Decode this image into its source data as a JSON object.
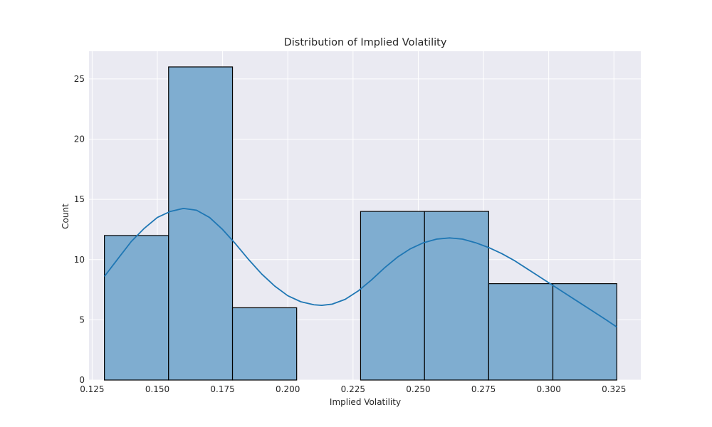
{
  "chart_data": {
    "type": "histogram",
    "title": "Distribution of Implied Volatility",
    "xlabel": "Implied Volatility",
    "ylabel": "Count",
    "xlim": [
      0.1238,
      0.3353
    ],
    "ylim": [
      0,
      27.3
    ],
    "grid": true,
    "bins": [
      {
        "x0": 0.1297,
        "x1": 0.1543,
        "count": 12
      },
      {
        "x0": 0.1543,
        "x1": 0.1788,
        "count": 26
      },
      {
        "x0": 0.1788,
        "x1": 0.2034,
        "count": 6
      },
      {
        "x0": 0.2034,
        "x1": 0.2279,
        "count": 0
      },
      {
        "x0": 0.2279,
        "x1": 0.2524,
        "count": 14
      },
      {
        "x0": 0.2524,
        "x1": 0.277,
        "count": 14
      },
      {
        "x0": 0.277,
        "x1": 0.3016,
        "count": 8
      },
      {
        "x0": 0.3016,
        "x1": 0.3261,
        "count": 8
      }
    ],
    "x_ticks": [
      0.125,
      0.15,
      0.175,
      0.2,
      0.225,
      0.25,
      0.275,
      0.3,
      0.325
    ],
    "x_tick_labels": [
      "0.125",
      "0.150",
      "0.175",
      "0.200",
      "0.225",
      "0.250",
      "0.275",
      "0.300",
      "0.325"
    ],
    "y_ticks": [
      0,
      5,
      10,
      15,
      20,
      25
    ],
    "y_tick_labels": [
      "0",
      "5",
      "10",
      "15",
      "20",
      "25"
    ],
    "kde": {
      "x": [
        0.1297,
        0.135,
        0.14,
        0.145,
        0.15,
        0.155,
        0.16,
        0.165,
        0.17,
        0.175,
        0.18,
        0.185,
        0.19,
        0.195,
        0.2,
        0.205,
        0.21,
        0.213,
        0.217,
        0.222,
        0.227,
        0.232,
        0.237,
        0.242,
        0.247,
        0.252,
        0.257,
        0.262,
        0.267,
        0.272,
        0.277,
        0.282,
        0.287,
        0.292,
        0.297,
        0.302,
        0.307,
        0.312,
        0.317,
        0.322,
        0.3261
      ],
      "y": [
        8.6,
        10.1,
        11.5,
        12.6,
        13.5,
        14.0,
        14.25,
        14.1,
        13.5,
        12.5,
        11.3,
        10.0,
        8.8,
        7.8,
        7.0,
        6.5,
        6.25,
        6.2,
        6.3,
        6.7,
        7.4,
        8.3,
        9.3,
        10.2,
        10.9,
        11.4,
        11.7,
        11.8,
        11.7,
        11.4,
        11.0,
        10.5,
        9.9,
        9.2,
        8.5,
        7.8,
        7.1,
        6.4,
        5.7,
        5.0,
        4.4
      ]
    },
    "colors": {
      "background": "#eaeaf2",
      "grid": "#ffffff",
      "bar_fill": "#7fadd0",
      "bar_edge": "#000000",
      "kde_line": "#1f77b4"
    }
  }
}
